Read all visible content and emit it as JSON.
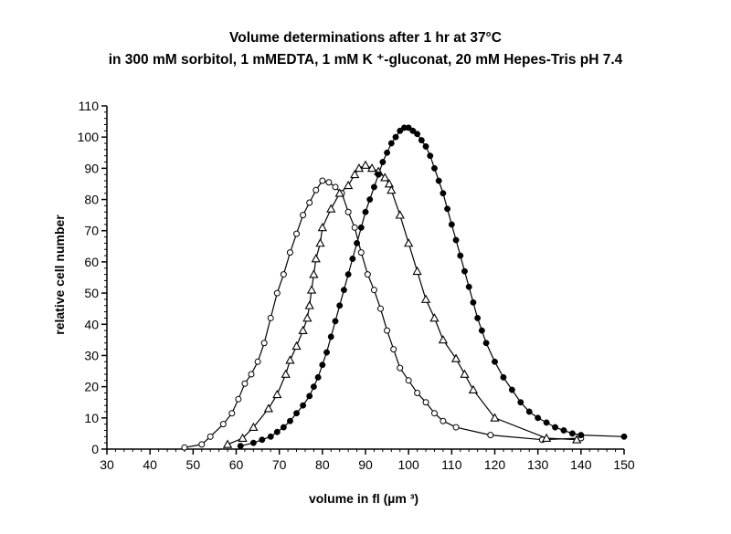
{
  "chart_data": {
    "type": "scatter",
    "title_line1": "Volume determinations after 1 hr at 37°C",
    "title_line2": "in 300 mM sorbitol, 1 mMEDTA, 1 mM K ⁺-gluconat, 20 mM Hepes-Tris pH 7.4",
    "xlabel": "volume in fl (µm ³)",
    "ylabel": "relative cell number",
    "xlim": [
      30,
      150
    ],
    "ylim": [
      0,
      110
    ],
    "xticks": [
      30,
      40,
      50,
      60,
      70,
      80,
      90,
      100,
      110,
      120,
      130,
      140,
      150
    ],
    "yticks": [
      0,
      10,
      20,
      30,
      40,
      50,
      60,
      70,
      80,
      90,
      100,
      110
    ],
    "grid": false,
    "series": [
      {
        "marker": "open-circle",
        "x": [
          48,
          52,
          54,
          57,
          59,
          60.5,
          62,
          63.5,
          65,
          66.5,
          68,
          69.5,
          71,
          72.5,
          74,
          75.5,
          77,
          78.5,
          80,
          81.5,
          83,
          84.5,
          86,
          87.5,
          89,
          90.5,
          92,
          93.5,
          95,
          96.5,
          98,
          100,
          102,
          104,
          106,
          108,
          111,
          119,
          131,
          140
        ],
        "y": [
          0.5,
          1.5,
          4,
          8,
          11.5,
          16,
          21,
          24,
          28,
          34,
          42,
          50,
          56,
          63,
          69,
          75,
          79,
          83,
          86,
          85.5,
          84,
          82,
          76,
          71,
          63,
          56,
          51,
          45,
          38,
          32,
          26,
          22,
          18,
          15,
          11.5,
          9,
          7,
          4.5,
          3,
          3.5
        ]
      },
      {
        "marker": "open-triangle",
        "x": [
          58,
          61.5,
          64,
          67.5,
          69.5,
          71.5,
          72.5,
          74,
          75.5,
          76.5,
          77,
          77.5,
          78,
          78.5,
          79.5,
          80,
          82,
          84,
          86,
          87.5,
          88.5,
          90,
          91.5,
          93,
          94.5,
          95.5,
          96,
          98,
          100,
          102,
          104,
          106,
          108,
          111,
          113,
          115,
          120,
          132,
          139
        ],
        "y": [
          1.5,
          3.5,
          7,
          13,
          17.5,
          24,
          28.5,
          33,
          38,
          42,
          46,
          51,
          56,
          61,
          66,
          71,
          77,
          82,
          84.5,
          88,
          90,
          91,
          90,
          89,
          87,
          85,
          83,
          75,
          66,
          57,
          48,
          42,
          35,
          29,
          24,
          19,
          10,
          3.5,
          3
        ]
      },
      {
        "marker": "filled-circle",
        "x": [
          61,
          64,
          66,
          68,
          69.5,
          71,
          72.5,
          74,
          75.5,
          77,
          78,
          79,
          80,
          81,
          82,
          83,
          84,
          85,
          86,
          87,
          88,
          89,
          90,
          91,
          92,
          93,
          94,
          95,
          96,
          97,
          98,
          99,
          100,
          101,
          102,
          103,
          104,
          105,
          106,
          107,
          108,
          109,
          110,
          111,
          112,
          113,
          114,
          115,
          116,
          117,
          118,
          120,
          122,
          124,
          126,
          128,
          130,
          132,
          134,
          136,
          138,
          140,
          150
        ],
        "y": [
          1,
          2,
          3,
          4,
          5.5,
          7,
          9,
          11.5,
          14,
          17,
          20,
          23,
          27,
          31,
          36,
          41,
          46,
          51,
          56,
          61,
          66,
          71,
          76,
          80,
          84,
          88,
          92,
          95,
          98,
          100,
          102,
          103,
          103,
          102,
          101,
          99,
          97,
          94,
          90,
          86,
          82,
          77,
          72,
          67,
          62,
          57,
          52,
          47,
          42,
          38,
          34,
          28,
          23,
          19,
          15,
          12,
          10,
          8.5,
          7,
          6,
          5,
          4.5,
          4
        ]
      }
    ]
  }
}
